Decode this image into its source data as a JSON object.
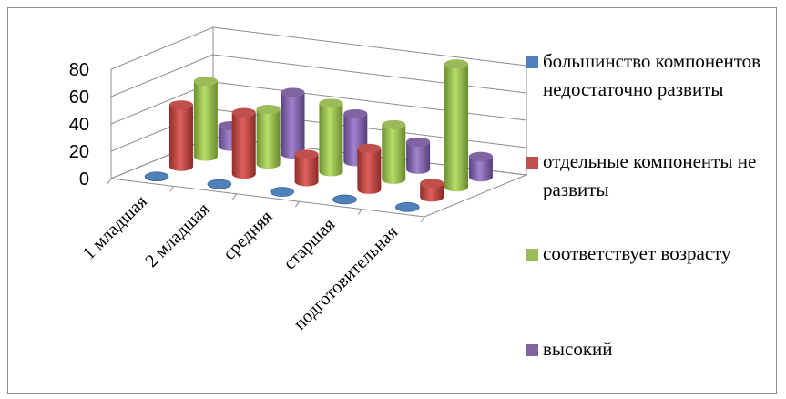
{
  "chart_data": {
    "type": "bar",
    "subtype": "3d-cylinder",
    "title": "",
    "xlabel": "",
    "ylabel": "",
    "categories": [
      "1 младшая",
      "2 младшая",
      "средняя",
      "старшая",
      "подготовительная"
    ],
    "ylim": [
      0,
      80
    ],
    "yticks": [
      0,
      20,
      40,
      60,
      80
    ],
    "grid": true,
    "legend_position": "right",
    "series": [
      {
        "name": "большинство компонентов недостаточно развиты",
        "color": "#4f81bd",
        "values": [
          0,
          0,
          0,
          0,
          0
        ]
      },
      {
        "name": "отдельные компоненты не развиты",
        "color": "#c0504d",
        "values": [
          45,
          45,
          20,
          30,
          10
        ]
      },
      {
        "name": "соответствует возрасту",
        "color": "#9bbb59",
        "values": [
          55,
          40,
          50,
          40,
          90
        ]
      },
      {
        "name": "высокий",
        "color": "#8064a2",
        "values": [
          15,
          45,
          35,
          20,
          15
        ]
      }
    ]
  }
}
